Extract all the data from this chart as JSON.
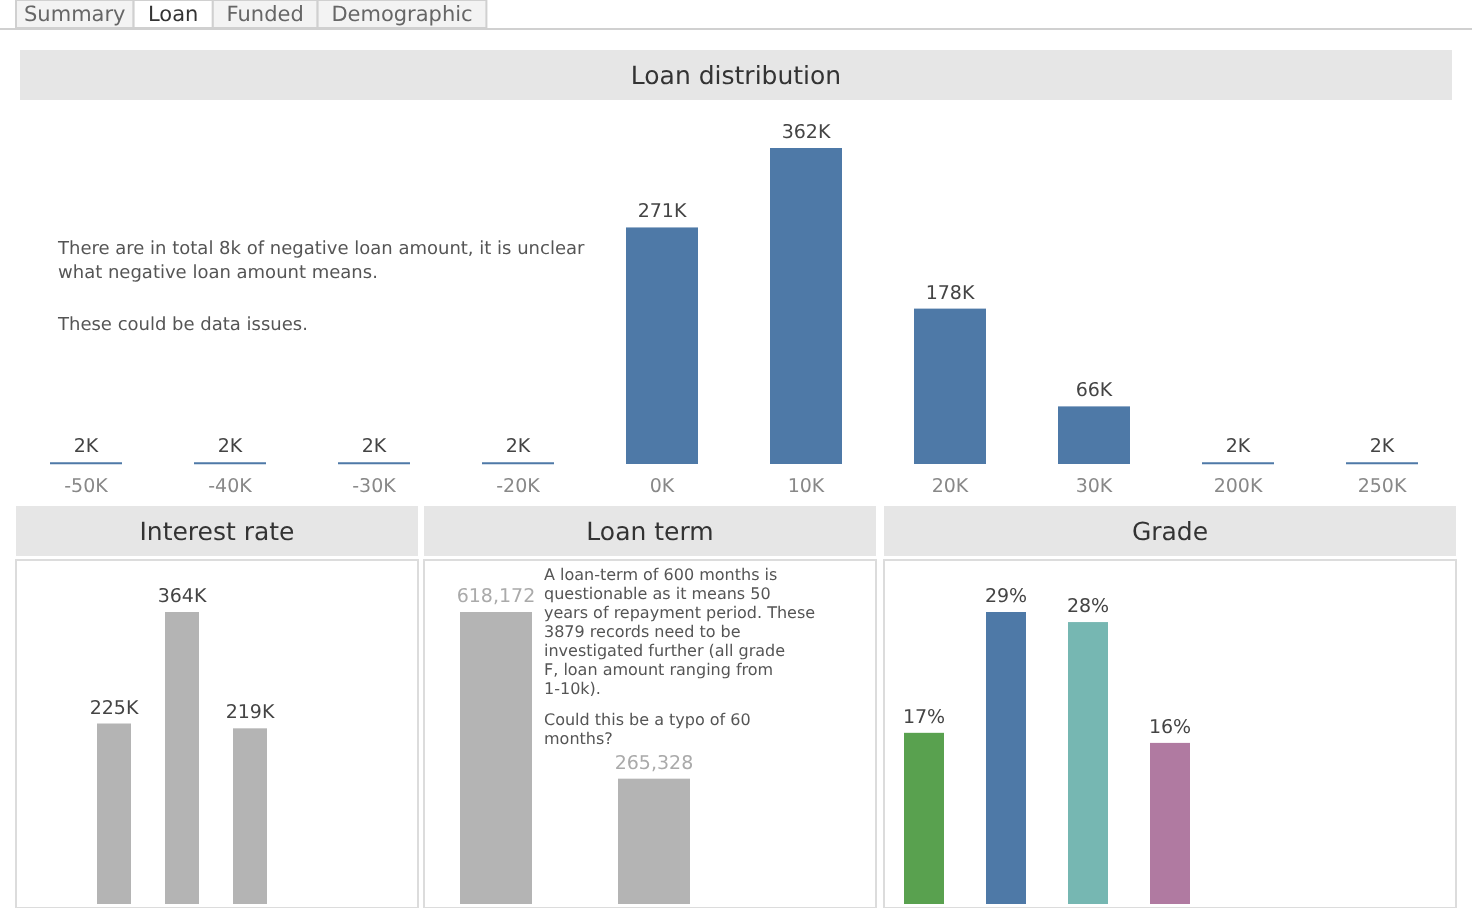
{
  "chart_data": [
    {
      "type": "other",
      "annotations": [
        "Summary",
        "Loan",
        "Funded",
        "Demographic"
      ]
    },
    {
      "type": "bar",
      "title": "Loan distribution",
      "categories": [
        "-50K",
        "-40K",
        "-30K",
        "-20K",
        "0K",
        "10K",
        "20K",
        "30K",
        "200K",
        "250K"
      ],
      "values": [
        2000,
        2000,
        2000,
        2000,
        271000,
        362000,
        178000,
        66000,
        2000,
        2000
      ],
      "value_labels": [
        "2K",
        "2K",
        "2K",
        "2K",
        "271K",
        "362K",
        "178K",
        "66K",
        "2K",
        "2K"
      ],
      "color": "#4e79a7",
      "annotations": [
        "There are in total 8k of negative loan amount, it is unclear what negative loan amount means.",
        "These could be data issues."
      ]
    },
    {
      "type": "bar",
      "title": "Interest rate",
      "categories": [
        null,
        null,
        null
      ],
      "values": [
        225000,
        364000,
        219000
      ],
      "value_labels": [
        "225K",
        "364K",
        "219K"
      ],
      "color": "#b4b4b4"
    },
    {
      "type": "bar",
      "title": "Loan term",
      "categories": [
        null,
        null
      ],
      "values": [
        618172,
        265328
      ],
      "value_labels": [
        "618,172",
        "265,328"
      ],
      "color": "#b4b4b4",
      "annotations": [
        "A loan-term of 600 months is questionable as it means 50 years of repayment period. These 3879 records need to be investigated further (all grade F, loan amount ranging from 1-10k).",
        "Could this be a typo of 60 months?"
      ]
    },
    {
      "type": "bar",
      "title": "Grade",
      "categories": [
        null,
        null,
        null,
        null
      ],
      "values": [
        17,
        29,
        28,
        16
      ],
      "value_labels": [
        "17%",
        "29%",
        "28%",
        "16%"
      ],
      "colors": [
        "#59a14f",
        "#4e79a7",
        "#76b7b2",
        "#b07aa1"
      ]
    }
  ]
}
